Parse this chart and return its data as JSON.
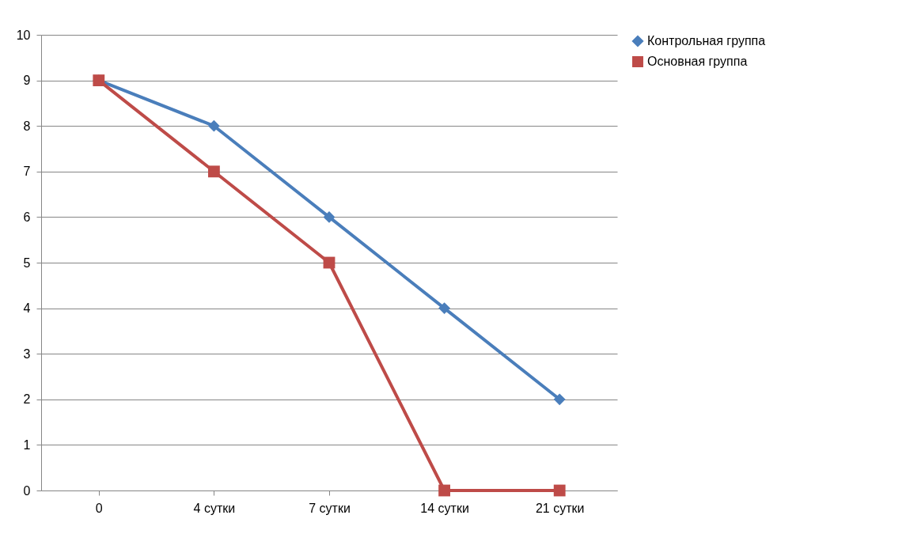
{
  "chart_data": {
    "type": "line",
    "categories": [
      "0",
      "4 сутки",
      "7 сутки",
      "14 сутки",
      "21 сутки"
    ],
    "series": [
      {
        "name": "Контрольная группа",
        "color": "#4a7ebb",
        "marker": "diamond",
        "values": [
          9,
          8,
          6,
          4,
          2
        ]
      },
      {
        "name": "Основная группа",
        "color": "#be4b48",
        "marker": "square",
        "values": [
          9,
          7,
          5,
          0,
          0
        ]
      }
    ],
    "ylim": [
      0,
      10
    ],
    "yticks": [
      0,
      1,
      2,
      3,
      4,
      5,
      6,
      7,
      8,
      9,
      10
    ],
    "grid": "y",
    "legend": "right",
    "line_style": "solid"
  }
}
